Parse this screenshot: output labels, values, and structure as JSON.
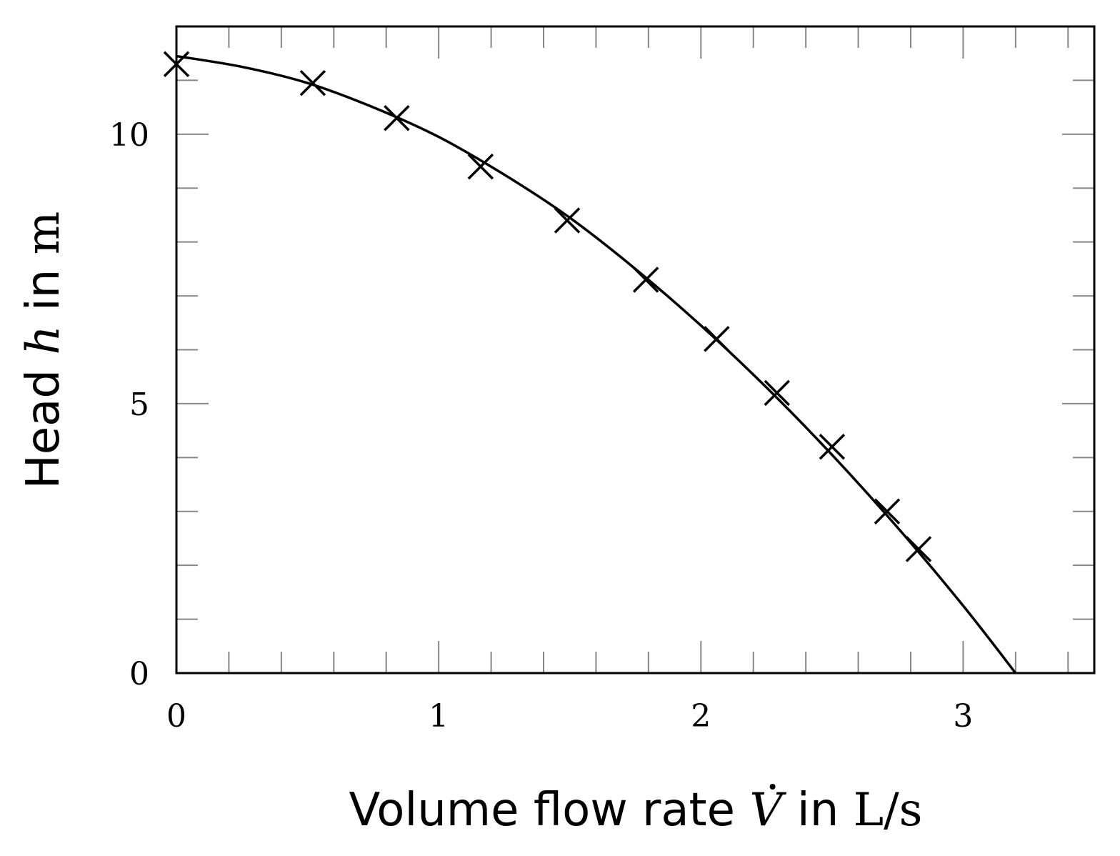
{
  "chart_data": {
    "type": "scatter",
    "title": "",
    "xlabel": {
      "prefix": "Volume flow rate ",
      "symbol": "V",
      "middle": " in ",
      "unit": "L/s"
    },
    "ylabel": {
      "prefix": "Head ",
      "symbol": "h",
      "middle": " in ",
      "unit": "m"
    },
    "xlim": [
      0,
      3.5
    ],
    "ylim": [
      0,
      12
    ],
    "x_ticks": [
      "0",
      "1",
      "2",
      "3"
    ],
    "y_ticks": [
      "0",
      "5",
      "10"
    ],
    "grid": false,
    "legend": "none",
    "series": [
      {
        "kind": "markers",
        "marker": "x",
        "x": [
          0.0,
          0.52,
          0.84,
          1.16,
          1.49,
          1.79,
          2.06,
          2.29,
          2.5,
          2.71,
          2.83
        ],
        "y": [
          11.3,
          10.95,
          10.3,
          9.4,
          8.4,
          7.3,
          6.2,
          5.2,
          4.2,
          3.0,
          2.3
        ]
      },
      {
        "kind": "line",
        "x": [
          0.0,
          0.25,
          0.5,
          0.75,
          1.0,
          1.25,
          1.5,
          1.75,
          2.0,
          2.25,
          2.5,
          2.75,
          3.0,
          3.2
        ],
        "y": [
          11.45,
          11.25,
          10.95,
          10.5,
          9.95,
          9.25,
          8.45,
          7.5,
          6.45,
          5.3,
          4.05,
          2.7,
          1.25,
          0.0
        ]
      }
    ]
  }
}
